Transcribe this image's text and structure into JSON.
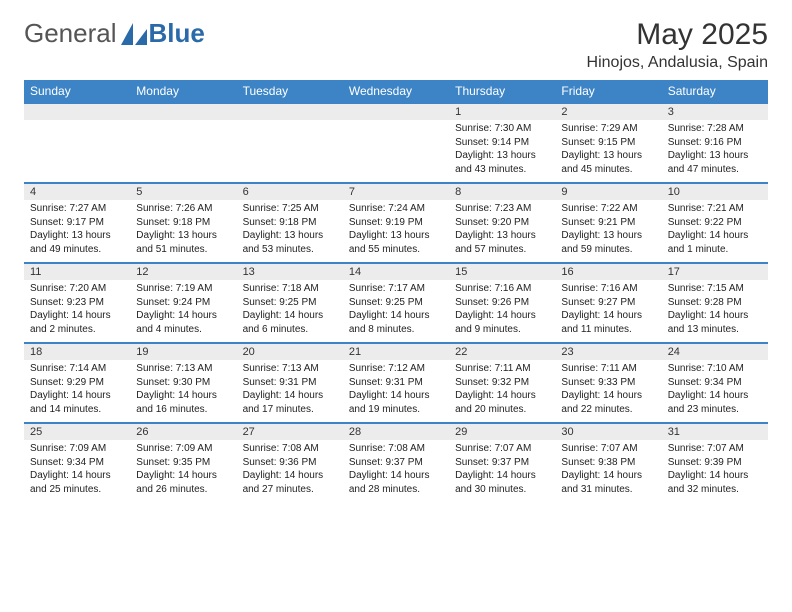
{
  "logo": {
    "general": "General",
    "blue": "Blue"
  },
  "title": "May 2025",
  "subtitle": "Hinojos, Andalusia, Spain",
  "weekdays": [
    "Sunday",
    "Monday",
    "Tuesday",
    "Wednesday",
    "Thursday",
    "Friday",
    "Saturday"
  ],
  "colors": {
    "header_bg": "#3d84c6",
    "header_text": "#ffffff",
    "daynum_bg": "#ececec",
    "row_divider": "#3d84c6",
    "text": "#222222",
    "logo_gray": "#555555",
    "logo_blue": "#2b6aa8"
  },
  "weeks": [
    [
      null,
      null,
      null,
      null,
      {
        "n": "1",
        "sr": "7:30 AM",
        "ss": "9:14 PM",
        "dl": "13 hours and 43 minutes."
      },
      {
        "n": "2",
        "sr": "7:29 AM",
        "ss": "9:15 PM",
        "dl": "13 hours and 45 minutes."
      },
      {
        "n": "3",
        "sr": "7:28 AM",
        "ss": "9:16 PM",
        "dl": "13 hours and 47 minutes."
      }
    ],
    [
      {
        "n": "4",
        "sr": "7:27 AM",
        "ss": "9:17 PM",
        "dl": "13 hours and 49 minutes."
      },
      {
        "n": "5",
        "sr": "7:26 AM",
        "ss": "9:18 PM",
        "dl": "13 hours and 51 minutes."
      },
      {
        "n": "6",
        "sr": "7:25 AM",
        "ss": "9:18 PM",
        "dl": "13 hours and 53 minutes."
      },
      {
        "n": "7",
        "sr": "7:24 AM",
        "ss": "9:19 PM",
        "dl": "13 hours and 55 minutes."
      },
      {
        "n": "8",
        "sr": "7:23 AM",
        "ss": "9:20 PM",
        "dl": "13 hours and 57 minutes."
      },
      {
        "n": "9",
        "sr": "7:22 AM",
        "ss": "9:21 PM",
        "dl": "13 hours and 59 minutes."
      },
      {
        "n": "10",
        "sr": "7:21 AM",
        "ss": "9:22 PM",
        "dl": "14 hours and 1 minute."
      }
    ],
    [
      {
        "n": "11",
        "sr": "7:20 AM",
        "ss": "9:23 PM",
        "dl": "14 hours and 2 minutes."
      },
      {
        "n": "12",
        "sr": "7:19 AM",
        "ss": "9:24 PM",
        "dl": "14 hours and 4 minutes."
      },
      {
        "n": "13",
        "sr": "7:18 AM",
        "ss": "9:25 PM",
        "dl": "14 hours and 6 minutes."
      },
      {
        "n": "14",
        "sr": "7:17 AM",
        "ss": "9:25 PM",
        "dl": "14 hours and 8 minutes."
      },
      {
        "n": "15",
        "sr": "7:16 AM",
        "ss": "9:26 PM",
        "dl": "14 hours and 9 minutes."
      },
      {
        "n": "16",
        "sr": "7:16 AM",
        "ss": "9:27 PM",
        "dl": "14 hours and 11 minutes."
      },
      {
        "n": "17",
        "sr": "7:15 AM",
        "ss": "9:28 PM",
        "dl": "14 hours and 13 minutes."
      }
    ],
    [
      {
        "n": "18",
        "sr": "7:14 AM",
        "ss": "9:29 PM",
        "dl": "14 hours and 14 minutes."
      },
      {
        "n": "19",
        "sr": "7:13 AM",
        "ss": "9:30 PM",
        "dl": "14 hours and 16 minutes."
      },
      {
        "n": "20",
        "sr": "7:13 AM",
        "ss": "9:31 PM",
        "dl": "14 hours and 17 minutes."
      },
      {
        "n": "21",
        "sr": "7:12 AM",
        "ss": "9:31 PM",
        "dl": "14 hours and 19 minutes."
      },
      {
        "n": "22",
        "sr": "7:11 AM",
        "ss": "9:32 PM",
        "dl": "14 hours and 20 minutes."
      },
      {
        "n": "23",
        "sr": "7:11 AM",
        "ss": "9:33 PM",
        "dl": "14 hours and 22 minutes."
      },
      {
        "n": "24",
        "sr": "7:10 AM",
        "ss": "9:34 PM",
        "dl": "14 hours and 23 minutes."
      }
    ],
    [
      {
        "n": "25",
        "sr": "7:09 AM",
        "ss": "9:34 PM",
        "dl": "14 hours and 25 minutes."
      },
      {
        "n": "26",
        "sr": "7:09 AM",
        "ss": "9:35 PM",
        "dl": "14 hours and 26 minutes."
      },
      {
        "n": "27",
        "sr": "7:08 AM",
        "ss": "9:36 PM",
        "dl": "14 hours and 27 minutes."
      },
      {
        "n": "28",
        "sr": "7:08 AM",
        "ss": "9:37 PM",
        "dl": "14 hours and 28 minutes."
      },
      {
        "n": "29",
        "sr": "7:07 AM",
        "ss": "9:37 PM",
        "dl": "14 hours and 30 minutes."
      },
      {
        "n": "30",
        "sr": "7:07 AM",
        "ss": "9:38 PM",
        "dl": "14 hours and 31 minutes."
      },
      {
        "n": "31",
        "sr": "7:07 AM",
        "ss": "9:39 PM",
        "dl": "14 hours and 32 minutes."
      }
    ]
  ],
  "labels": {
    "sunrise": "Sunrise: ",
    "sunset": "Sunset: ",
    "daylight": "Daylight: "
  }
}
